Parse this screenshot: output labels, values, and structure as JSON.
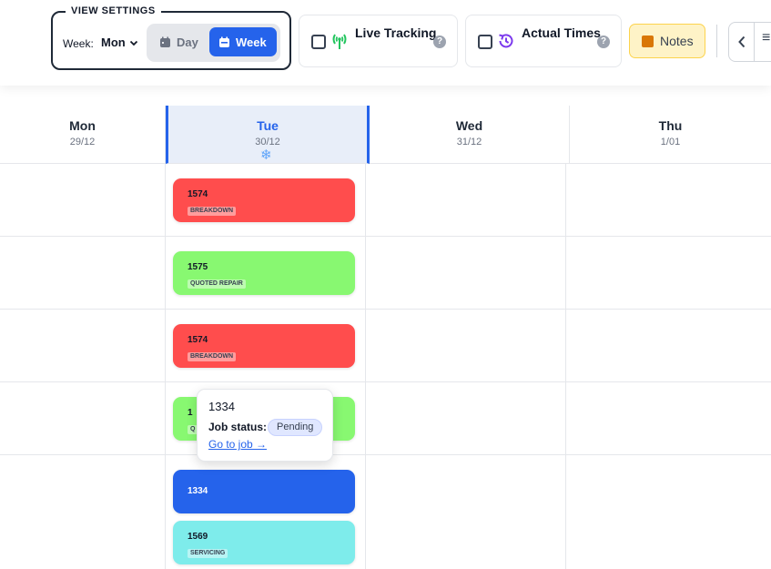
{
  "toolbar": {
    "view_settings": {
      "legend": "VIEW SETTINGS",
      "week_label": "Week:",
      "week_start": "Mon",
      "modes": [
        {
          "label": "Day",
          "icon": "calendar-icon",
          "selected": false
        },
        {
          "label": "Week",
          "icon": "calendar-week-icon",
          "selected": true
        }
      ]
    },
    "live_tracking": {
      "label": "Live Tracking",
      "checked": false,
      "icon": "antenna-icon",
      "help": "?"
    },
    "actual_times": {
      "label": "Actual Times",
      "checked": false,
      "icon": "history-icon",
      "help": "?"
    },
    "notes": {
      "label": "Notes",
      "icon": "note-icon"
    },
    "nav": {
      "prev_icon": "chevron-left-icon",
      "menu_icon": "menu-icon",
      "menu_glyph": "≡"
    }
  },
  "days": [
    {
      "name": "Mon",
      "date": "29/12",
      "selected": false
    },
    {
      "name": "Tue",
      "date": "30/12",
      "selected": true,
      "indicator_icon": "snowflake-icon",
      "indicator_glyph": "❄"
    },
    {
      "name": "Wed",
      "date": "31/12",
      "selected": false
    },
    {
      "name": "Thu",
      "date": "1/01",
      "selected": false
    }
  ],
  "jobs": [
    {
      "number": "1574",
      "tag": "BREAKDOWN",
      "color": "#ff4d4d"
    },
    {
      "number": "1575",
      "tag": "QUOTED REPAIR",
      "color": "#88f871"
    },
    {
      "number": "1574",
      "tag": "BREAKDOWN",
      "color": "#ff4d4d"
    },
    {
      "number": "1",
      "tag": "Q",
      "color": "#88f871"
    },
    {
      "number": "1334",
      "tag": "",
      "color": "#2563eb"
    },
    {
      "number": "1569",
      "tag": "SERVICING",
      "color": "#7eeceb"
    }
  ],
  "popup": {
    "job_number": "1334",
    "status_label": "Job status:",
    "status": "Pending",
    "link": "Go to job →"
  },
  "colors": {
    "accent": "#2563eb",
    "selected_day_bg": "#e8eef9",
    "notes_bg": "#fef3c7",
    "tracking_icon": "#22c55e",
    "history_icon": "#7c3aed"
  }
}
